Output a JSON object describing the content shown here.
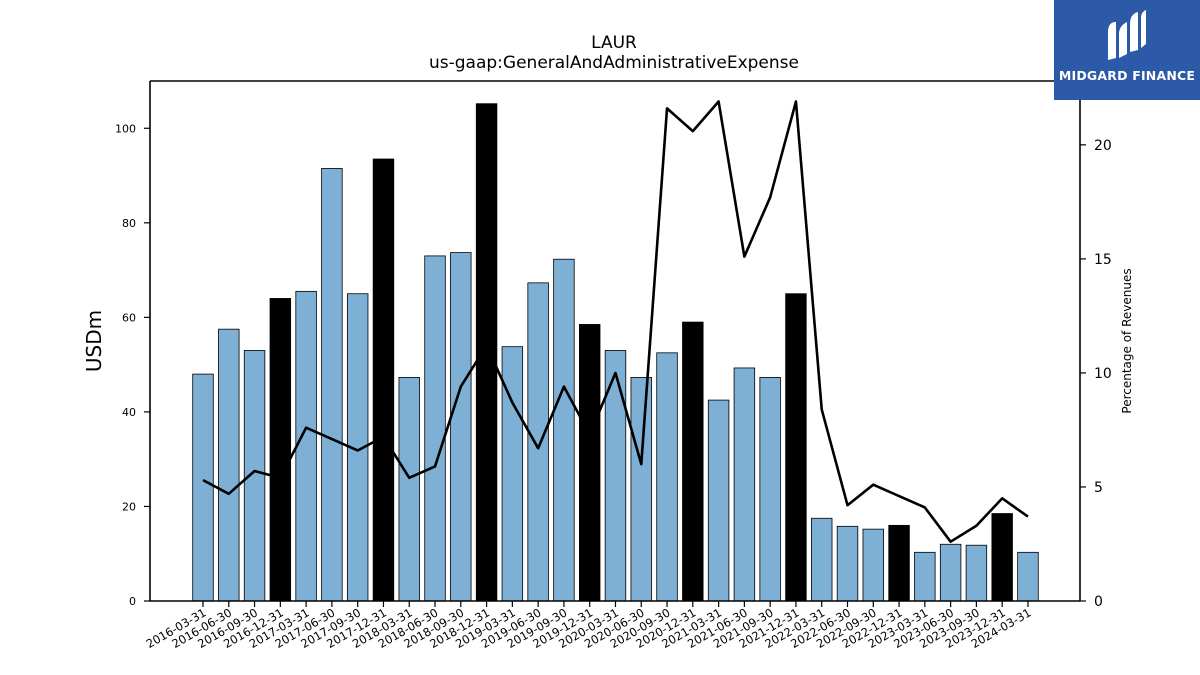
{
  "brand": {
    "name": "MIDGARD FINANCE",
    "color": "#2d5aa8",
    "icon": "midgard-logo-icon"
  },
  "chart_data": {
    "type": "bar",
    "title": "LAUR",
    "subtitle": "us-gaap:GeneralAndAdministrativeExpense",
    "ylabel": "USDm",
    "y2label": "Percentage of Revenues",
    "ylim": [
      0,
      110
    ],
    "y2lim": [
      0,
      22.8
    ],
    "yticks": [
      0,
      20,
      40,
      60,
      80,
      100
    ],
    "y2ticks": [
      0,
      5,
      10,
      15,
      20
    ],
    "categories": [
      "2016-03-31",
      "2016-06-30",
      "2016-09-30",
      "2016-12-31",
      "2017-03-31",
      "2017-06-30",
      "2017-09-30",
      "2017-12-31",
      "2018-03-31",
      "2018-06-30",
      "2018-09-30",
      "2018-12-31",
      "2019-03-31",
      "2019-06-30",
      "2019-09-30",
      "2019-12-31",
      "2020-03-31",
      "2020-06-30",
      "2020-09-30",
      "2020-12-31",
      "2021-03-31",
      "2021-06-30",
      "2021-09-30",
      "2021-12-31",
      "2022-03-31",
      "2022-06-30",
      "2022-09-30",
      "2022-12-31",
      "2023-03-31",
      "2023-06-30",
      "2023-09-30",
      "2023-12-31",
      "2024-03-31"
    ],
    "bar_series": {
      "name": "USDm",
      "values": [
        48,
        57.5,
        53,
        64,
        65.5,
        91.5,
        65,
        93.5,
        47.3,
        73,
        73.7,
        105.2,
        53.8,
        67.3,
        72.3,
        58.5,
        53,
        47.3,
        52.5,
        59,
        42.5,
        49.3,
        47.3,
        65,
        17.5,
        15.8,
        15.2,
        16,
        10.3,
        12,
        11.8,
        18.5,
        10.3
      ],
      "highlight_color": "#000000",
      "highlight_indices": [
        3,
        7,
        11,
        15,
        19,
        23,
        27,
        31
      ]
    },
    "line_series": {
      "name": "Percentage of Revenues",
      "values": [
        5.3,
        4.7,
        5.7,
        5.4,
        7.6,
        7.1,
        6.6,
        7.2,
        5.4,
        5.9,
        9.4,
        11.2,
        8.7,
        6.7,
        9.4,
        7.3,
        10.0,
        6.0,
        21.6,
        20.6,
        21.9,
        15.1,
        17.7,
        21.9,
        8.4,
        4.2,
        5.1,
        4.6,
        4.1,
        2.6,
        3.3,
        4.5,
        3.7
      ],
      "color": "#000000"
    },
    "colors": {
      "bar": "#7eb0d5",
      "highlight": "#000000",
      "line": "#000000"
    },
    "grid": false,
    "legend": "none"
  }
}
